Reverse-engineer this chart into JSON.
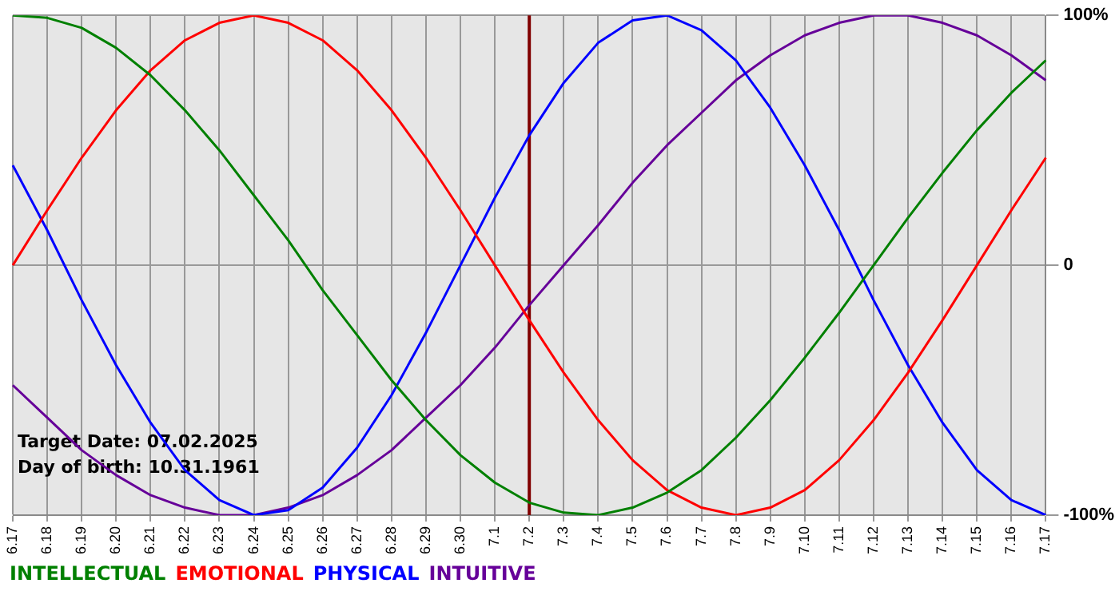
{
  "chart_data": {
    "type": "line",
    "categories": [
      "6.17",
      "6.18",
      "6.19",
      "6.20",
      "6.21",
      "6.22",
      "6.23",
      "6.24",
      "6.25",
      "6.26",
      "6.27",
      "6.28",
      "6.29",
      "6.30",
      "7.1",
      "7.2",
      "7.3",
      "7.4",
      "7.5",
      "7.6",
      "7.7",
      "7.8",
      "7.9",
      "7.10",
      "7.11",
      "7.12",
      "7.13",
      "7.14",
      "7.15",
      "7.16",
      "7.17"
    ],
    "series": [
      {
        "name": "INTELLECTUAL",
        "color": "#008000",
        "values": [
          100,
          99,
          95,
          87,
          76,
          62,
          46,
          28,
          10,
          -10,
          -28,
          -46,
          -62,
          -76,
          -87,
          -95,
          -99,
          -100,
          -97,
          -91,
          -82,
          -69,
          -54,
          -37,
          -19,
          0,
          19,
          37,
          54,
          69,
          82
        ]
      },
      {
        "name": "EMOTIONAL",
        "color": "#ff0000",
        "values": [
          0,
          22,
          43,
          62,
          78,
          90,
          97,
          100,
          97,
          90,
          78,
          62,
          43,
          22,
          0,
          -22,
          -43,
          -62,
          -78,
          -90,
          -97,
          -100,
          -97,
          -90,
          -78,
          -62,
          -43,
          -22,
          0,
          22,
          43
        ]
      },
      {
        "name": "PHYSICAL",
        "color": "#0000ff",
        "values": [
          40,
          14,
          -14,
          -40,
          -63,
          -82,
          -94,
          -100,
          -98,
          -89,
          -73,
          -52,
          -27,
          0,
          27,
          52,
          73,
          89,
          98,
          100,
          94,
          82,
          63,
          40,
          14,
          -14,
          -40,
          -63,
          -82,
          -94,
          -100
        ]
      },
      {
        "name": "INTUITIVE",
        "color": "#660099",
        "values": [
          -48,
          -61,
          -74,
          -84,
          -92,
          -97,
          -100,
          -100,
          -97,
          -92,
          -84,
          -74,
          -61,
          -48,
          -33,
          -16,
          0,
          16,
          33,
          48,
          61,
          74,
          84,
          92,
          97,
          100,
          100,
          97,
          92,
          84,
          74
        ]
      }
    ],
    "ylim": [
      -100,
      100
    ],
    "yticks": [
      {
        "value": 100,
        "label": "100%"
      },
      0,
      {
        "value": -100,
        "label": "-100%"
      }
    ],
    "ref_lines": [
      {
        "axis": "x",
        "value": "7.2",
        "color": "#800000"
      }
    ],
    "annotations": [
      "Target Date: 07.02.2025",
      "Day of birth: 10.31.1961"
    ],
    "grid": true,
    "legend": "bottom left",
    "marker": "none",
    "line_style": "solid"
  }
}
